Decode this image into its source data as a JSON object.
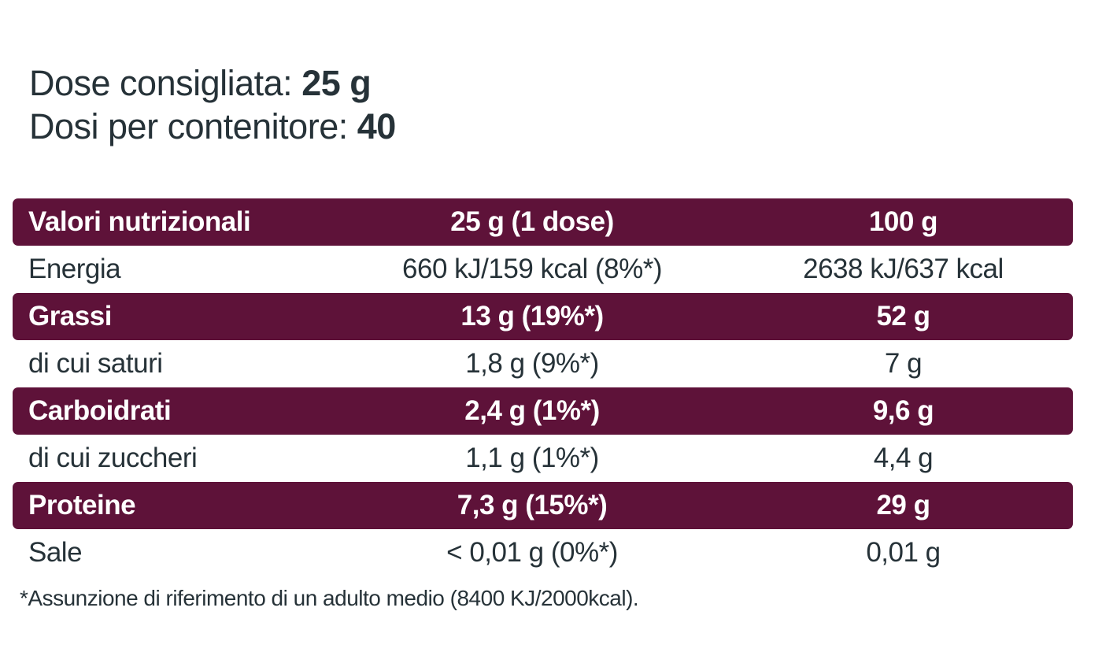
{
  "intro": {
    "dose_label": "Dose consigliata: ",
    "dose_value": "25 g",
    "servings_label": "Dosi per contenitore: ",
    "servings_value": "40"
  },
  "table": {
    "header": {
      "col1": "Valori nutrizionali",
      "col2": "25 g (1 dose)",
      "col3": "100 g"
    },
    "rows": [
      {
        "label": "Energia",
        "per_dose": "660 kJ/159 kcal (8%*)",
        "per_100g": "2638 kJ/637 kcal",
        "highlight": false
      },
      {
        "label": "Grassi",
        "per_dose": "13 g (19%*)",
        "per_100g": "52 g",
        "highlight": true
      },
      {
        "label": "di cui saturi",
        "per_dose": "1,8 g (9%*)",
        "per_100g": "7 g",
        "highlight": false
      },
      {
        "label": "Carboidrati",
        "per_dose": "2,4 g (1%*)",
        "per_100g": "9,6 g",
        "highlight": true
      },
      {
        "label": "di cui zuccheri",
        "per_dose": "1,1 g (1%*)",
        "per_100g": "4,4 g",
        "highlight": false
      },
      {
        "label": "Proteine",
        "per_dose": "7,3 g (15%*)",
        "per_100g": "29 g",
        "highlight": true
      },
      {
        "label": "Sale",
        "per_dose": "< 0,01 g (0%*)",
        "per_100g": "0,01 g",
        "highlight": false
      }
    ]
  },
  "footnote": "*Assunzione di riferimento di un adulto medio (8400 KJ/2000kcal).",
  "colors": {
    "accent": "#5e1239",
    "text": "#263238",
    "background": "#ffffff"
  }
}
